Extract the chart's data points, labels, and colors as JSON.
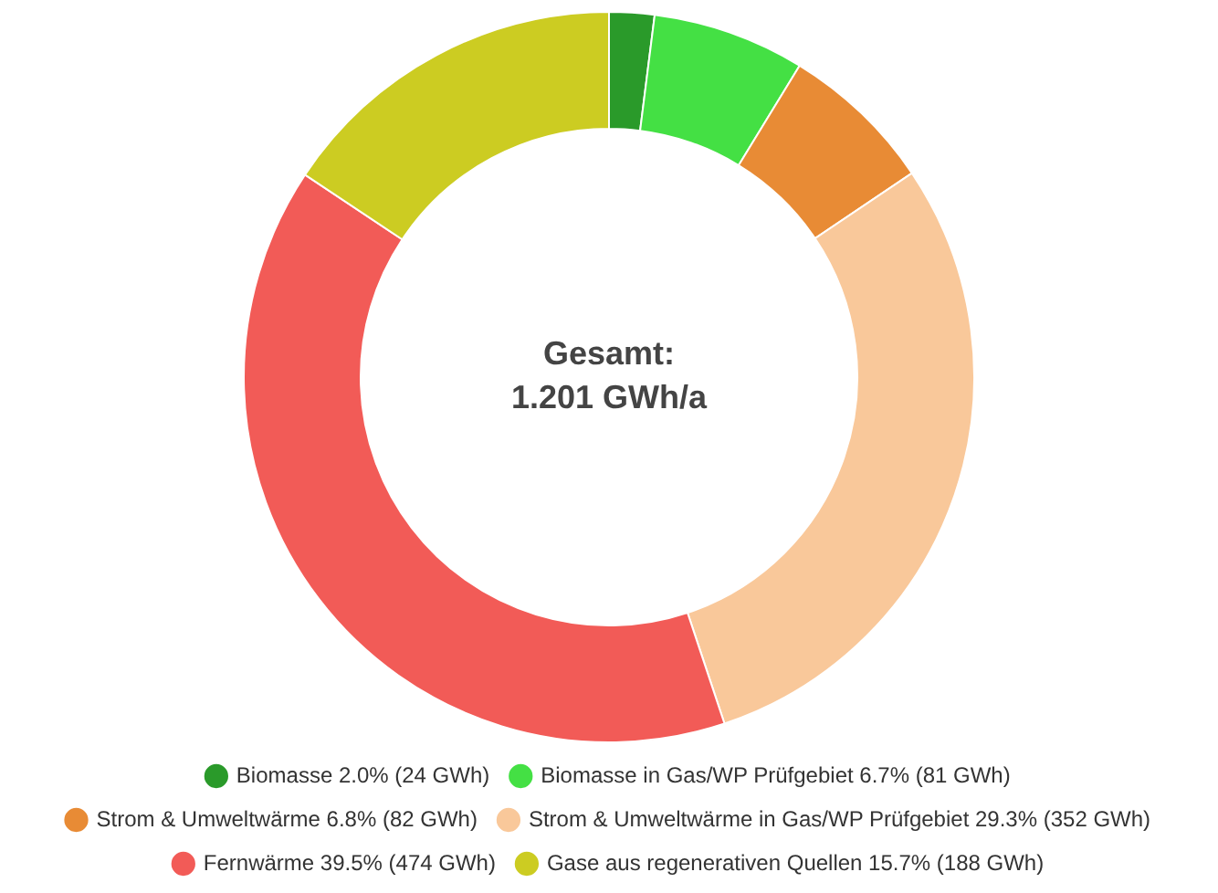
{
  "chart_data": {
    "type": "donut",
    "categories": [
      "Biomasse 2.0% (24 GWh)",
      "Biomasse in Gas/WP Prüfgebiet 6.7% (81 GWh)",
      "Strom & Umweltwärme 6.8% (82 GWh)",
      "Strom & Umweltwärme in Gas/WP Prüfgebiet 29.3% (352 GWh)",
      "Fernwärme 39.5% (474 GWh)",
      "Gase aus regenerativen Quellen 15.7% (188 GWh)"
    ],
    "values": [
      24,
      81,
      82,
      352,
      474,
      188
    ],
    "colors": [
      "#2a9a2a",
      "#44e044",
      "#e88b35",
      "#f9c89a",
      "#f25b57",
      "#cccc22"
    ],
    "annotations": [
      "Gesamt:",
      "1.201 GWh/a"
    ],
    "legend": "bottom"
  }
}
